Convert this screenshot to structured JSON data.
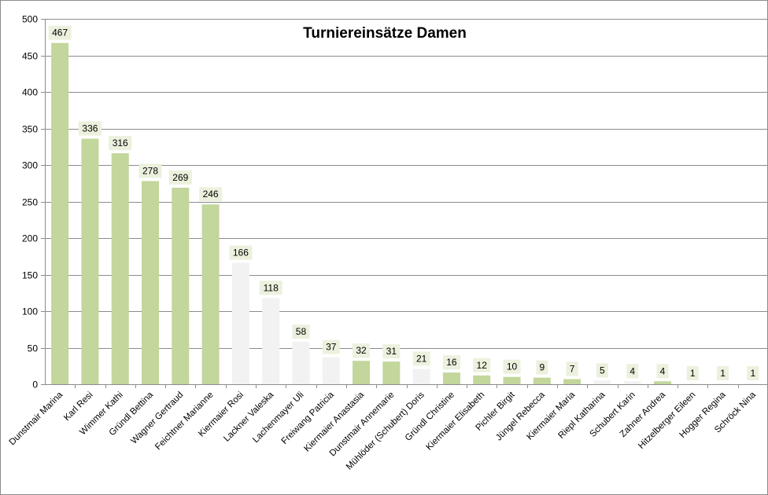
{
  "chart_data": {
    "type": "bar",
    "title": "Turniereinsätze Damen",
    "xlabel": "",
    "ylabel": "",
    "ylim": [
      0,
      500
    ],
    "yticks": [
      0,
      50,
      100,
      150,
      200,
      250,
      300,
      350,
      400,
      450,
      500
    ],
    "grid": true,
    "legend": "none",
    "categories": [
      "Dunstmair Marina",
      "Karl Resi",
      "Wimmer Kathi",
      "Gründl Bettina",
      "Wagner Gertraud",
      "Feichtner Marianne",
      "Kiermaier Rosi",
      "Lackner Valeska",
      "Lachenmayer Uli",
      "Freiwang Patricia",
      "Kiermaier Anastasia",
      "Dunstmair Annemarie",
      "Mühlöder (Schubert) Doris",
      "Gründl Christine",
      "Kiermaier Elisabeth",
      "Pichler Birgit",
      "Jüngel Rebecca",
      "Kiermaier Maria",
      "Riepl Katharina",
      "Schubert Karin",
      "Zahner Andrea",
      "Hitzelberger Eileen",
      "Hogger Regina",
      "Schröck Nina"
    ],
    "values": [
      467,
      336,
      316,
      278,
      269,
      246,
      166,
      118,
      58,
      37,
      32,
      31,
      21,
      16,
      12,
      10,
      9,
      7,
      5,
      4,
      4,
      1,
      1,
      1
    ],
    "highlighted": [
      true,
      true,
      true,
      true,
      true,
      true,
      false,
      false,
      false,
      false,
      true,
      true,
      false,
      true,
      true,
      true,
      true,
      true,
      false,
      false,
      true,
      false,
      false,
      false
    ],
    "colors": {
      "highlight": "#c3d69b",
      "normal": "#f2f2f2",
      "label_bg": "#ebf1dd"
    }
  }
}
